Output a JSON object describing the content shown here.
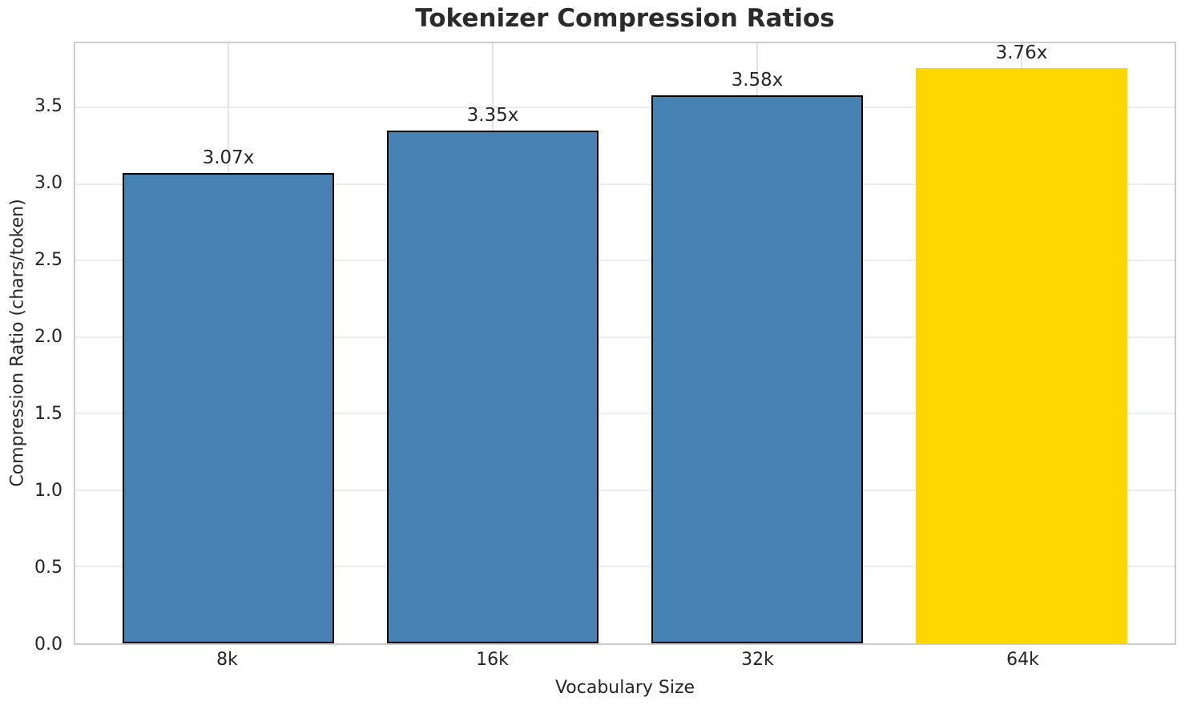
{
  "chart_data": {
    "type": "bar",
    "title": "Tokenizer Compression Ratios",
    "xlabel": "Vocabulary Size",
    "ylabel": "Compression Ratio (chars/token)",
    "categories": [
      "8k",
      "16k",
      "32k",
      "64k"
    ],
    "values": [
      3.07,
      3.35,
      3.58,
      3.76
    ],
    "bar_labels": [
      "3.07x",
      "3.35x",
      "3.58x",
      "3.76x"
    ],
    "bar_colors": [
      "#4682b4",
      "#4682b4",
      "#4682b4",
      "#ffd700"
    ],
    "bar_edge_colors": [
      "#000000",
      "#000000",
      "#000000",
      "#ffd700"
    ],
    "ylim": [
      0,
      3.92
    ],
    "yticks": [
      0.0,
      0.5,
      1.0,
      1.5,
      2.0,
      2.5,
      3.0,
      3.5
    ],
    "ytick_labels": [
      "0.0",
      "0.5",
      "1.0",
      "1.5",
      "2.0",
      "2.5",
      "3.0",
      "3.5"
    ],
    "grid": true,
    "legend": "none",
    "text_color": "#262626",
    "grid_color": "#ececec",
    "spine_color": "#cccccc"
  }
}
